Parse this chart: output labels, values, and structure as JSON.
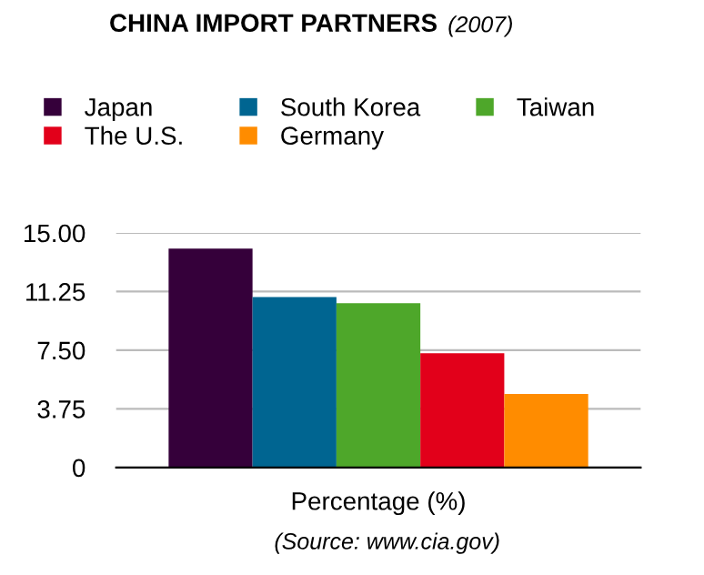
{
  "chart_data": {
    "type": "bar",
    "title": "CHINA IMPORT PARTNERS",
    "subtitle": "(2007)",
    "xlabel": "Percentage (%)",
    "categories": [
      null
    ],
    "series": [
      {
        "name": "Japan",
        "color": "#35003a",
        "values": [
          14.0
        ]
      },
      {
        "name": "South Korea",
        "color": "#006591",
        "values": [
          10.9
        ]
      },
      {
        "name": "Taiwan",
        "color": "#4ea72a",
        "values": [
          10.5
        ]
      },
      {
        "name": "The U.S.",
        "color": "#e2001a",
        "values": [
          7.3
        ]
      },
      {
        "name": "Germany",
        "color": "#ff8c00",
        "values": [
          4.7
        ]
      }
    ],
    "ylim": [
      0,
      15
    ],
    "yticks": [
      0,
      {
        "value": 3.75,
        "label": "3.75"
      },
      {
        "value": 7.5,
        "label": "7.50"
      },
      {
        "value": 11.25,
        "label": "11.25"
      },
      {
        "value": 15,
        "label": "15.00"
      }
    ],
    "grid": "y",
    "legend": "top",
    "annotations": [
      "(Source: www.cia.gov)"
    ]
  }
}
